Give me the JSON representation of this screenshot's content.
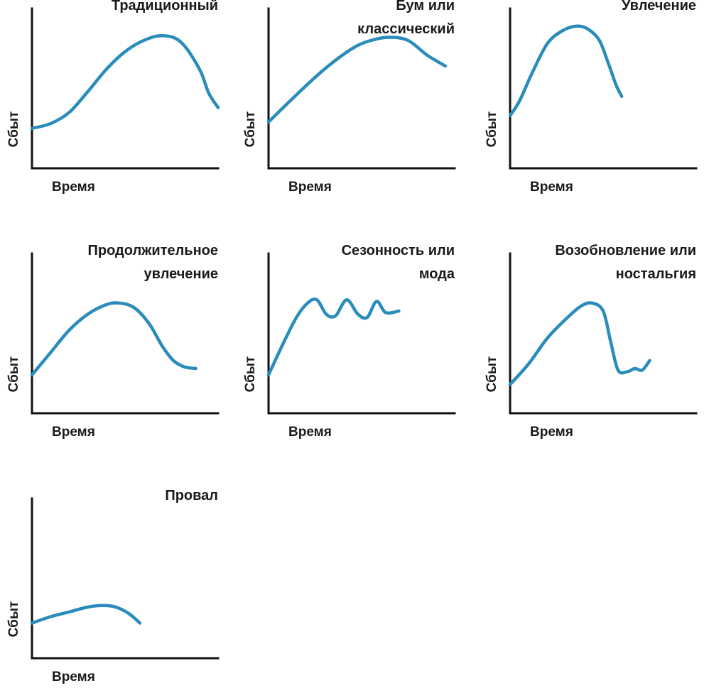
{
  "colors": {
    "curve": "#2a8cbb",
    "axis": "#111111",
    "text": "#1a1a1a"
  },
  "chart_data": [
    {
      "type": "line",
      "title": [
        "Традиционный"
      ],
      "xlabel": "Время",
      "ylabel": "Сбыт",
      "xlim": [
        0,
        1
      ],
      "ylim": [
        0,
        1
      ],
      "x": [
        0,
        0.1,
        0.2,
        0.3,
        0.4,
        0.5,
        0.6,
        0.7,
        0.8,
        0.9,
        0.95,
        1
      ],
      "y": [
        0.25,
        0.28,
        0.35,
        0.48,
        0.62,
        0.73,
        0.8,
        0.83,
        0.79,
        0.62,
        0.47,
        0.38
      ]
    },
    {
      "type": "line",
      "title": [
        "Бум или",
        "классический"
      ],
      "xlabel": "Время",
      "ylabel": "Сбыт",
      "xlim": [
        0,
        1
      ],
      "ylim": [
        0,
        1
      ],
      "x": [
        0,
        0.15,
        0.3,
        0.45,
        0.55,
        0.65,
        0.75,
        0.85,
        0.95
      ],
      "y": [
        0.29,
        0.46,
        0.62,
        0.75,
        0.8,
        0.82,
        0.8,
        0.71,
        0.64
      ]
    },
    {
      "type": "line",
      "title": [
        "Увлечение"
      ],
      "xlabel": "Время",
      "ylabel": "Сбыт",
      "xlim": [
        0,
        1
      ],
      "ylim": [
        0,
        1
      ],
      "x": [
        0,
        0.05,
        0.12,
        0.2,
        0.28,
        0.36,
        0.42,
        0.48,
        0.53,
        0.57,
        0.6
      ],
      "y": [
        0.33,
        0.42,
        0.6,
        0.78,
        0.86,
        0.89,
        0.87,
        0.8,
        0.65,
        0.52,
        0.45
      ]
    },
    {
      "type": "line",
      "title": [
        "Продолжительное",
        "увлечение"
      ],
      "xlabel": "Время",
      "ylabel": "Сбыт",
      "xlim": [
        0,
        1
      ],
      "ylim": [
        0,
        1
      ],
      "x": [
        0,
        0.1,
        0.2,
        0.3,
        0.4,
        0.47,
        0.55,
        0.63,
        0.7,
        0.76,
        0.82,
        0.88
      ],
      "y": [
        0.24,
        0.38,
        0.52,
        0.62,
        0.68,
        0.69,
        0.66,
        0.56,
        0.42,
        0.33,
        0.29,
        0.28
      ]
    },
    {
      "type": "line",
      "title": [
        "Сезонность или",
        "мода"
      ],
      "xlabel": "Время",
      "ylabel": "Сбыт",
      "xlim": [
        0,
        1
      ],
      "ylim": [
        0,
        1
      ],
      "x": [
        0,
        0.08,
        0.15,
        0.21,
        0.26,
        0.31,
        0.36,
        0.42,
        0.48,
        0.53,
        0.58,
        0.63,
        0.7
      ],
      "y": [
        0.24,
        0.44,
        0.6,
        0.69,
        0.71,
        0.62,
        0.61,
        0.71,
        0.62,
        0.6,
        0.7,
        0.63,
        0.64
      ]
    },
    {
      "type": "line",
      "title": [
        "Возобновление или",
        "ностальгия"
      ],
      "xlabel": "Время",
      "ylabel": "Сбыт",
      "xlim": [
        0,
        1
      ],
      "ylim": [
        0,
        1
      ],
      "x": [
        0,
        0.1,
        0.2,
        0.3,
        0.38,
        0.44,
        0.5,
        0.54,
        0.58,
        0.63,
        0.67,
        0.71,
        0.75
      ],
      "y": [
        0.18,
        0.31,
        0.47,
        0.59,
        0.67,
        0.69,
        0.64,
        0.45,
        0.27,
        0.26,
        0.28,
        0.27,
        0.33
      ]
    },
    {
      "type": "line",
      "title": [
        "Провал"
      ],
      "xlabel": "Время",
      "ylabel": "Сбыт",
      "xlim": [
        0,
        1
      ],
      "ylim": [
        0,
        1
      ],
      "x": [
        0,
        0.1,
        0.2,
        0.3,
        0.38,
        0.45,
        0.52,
        0.58
      ],
      "y": [
        0.22,
        0.26,
        0.29,
        0.32,
        0.33,
        0.32,
        0.28,
        0.22
      ]
    }
  ]
}
